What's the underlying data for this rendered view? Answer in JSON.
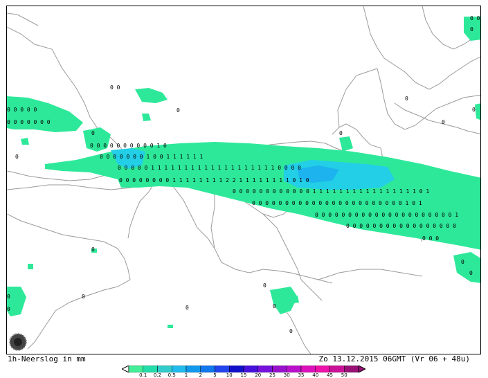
{
  "caption": {
    "left": "1h-Neerslog in mm",
    "right": "Zo 13.12.2015 06GMT (Vr 06 + 48u)"
  },
  "legend": {
    "ticks": [
      "0.1",
      "0.2",
      "0.5",
      "1",
      "2",
      "5",
      "10",
      "15",
      "20",
      "25",
      "30",
      "35",
      "40",
      "45",
      "50"
    ],
    "colors": [
      "#44ee99",
      "#22ddaa",
      "#33cccc",
      "#22bbee",
      "#1199ee",
      "#1177ee",
      "#2244ee",
      "#1111cc",
      "#4411dd",
      "#7711dd",
      "#9911cc",
      "#bb11cc",
      "#dd11bb",
      "#ee11aa",
      "#cc1199",
      "#991177"
    ]
  },
  "colors": {
    "light_rain": "#2ee89a",
    "moderate_rain": "#22cfe6",
    "heavier_rain": "#1cb3ee",
    "coastline": "#9a9a9a"
  },
  "marker_rows": [
    {
      "t": "0 0",
      "row": 1
    },
    {
      "t": "0  0",
      "row": 2
    },
    {
      "t": "0 0 0 0 0",
      "row": 3
    },
    {
      "t": "0 0 0 0 0 0 0",
      "row": 4
    },
    {
      "t": "0 0 0 0 0 0 0 0 0 0 1 0",
      "row": 5
    },
    {
      "t": "0 0 0 0 0 0 0 1 0 0 1 1 1 1 1 1",
      "row": 6
    },
    {
      "t": "0 0 0 0 0 1 1 1 1 1 1 1 1 1 1 1 1 1 1 1 1 1 1 1 0 0 0 0",
      "row": 7
    },
    {
      "t": "0 0 0 0 0 0 0 0 1 1 1 1 1 1 1 1 2 2 1 1 1 1 1 1 1 1 0 1 0",
      "row": 8
    },
    {
      "t": "0 0 0 0 0 0 0 0 0 0 0 0 1 1 1 1 1 1 1 1 1 1 1 1 1 1 1 1 0 1",
      "row": 9
    },
    {
      "t": "0 0 0 0 0 0 0 0 0 0 0 0 0 0 0 0 0 0 0 0 0 0 0 1 0 1",
      "row": 10
    },
    {
      "t": "0 0 0 0 0 0 0 0 0 0 0 0 0 0 0 0 0 0 0 0 0 1",
      "row": 11
    },
    {
      "t": "0 0 0 0 0 0 0 0 0 0 0 0 0 0 0 0 0",
      "row": 12
    },
    {
      "t": "0 0 0",
      "row": 13
    }
  ],
  "scattered_zeros": [
    "0",
    "0",
    "0",
    "0",
    "0",
    "0",
    "0",
    "0",
    "0",
    "0",
    "0",
    "0",
    "0",
    "0",
    "0",
    "0",
    "0",
    "0"
  ]
}
